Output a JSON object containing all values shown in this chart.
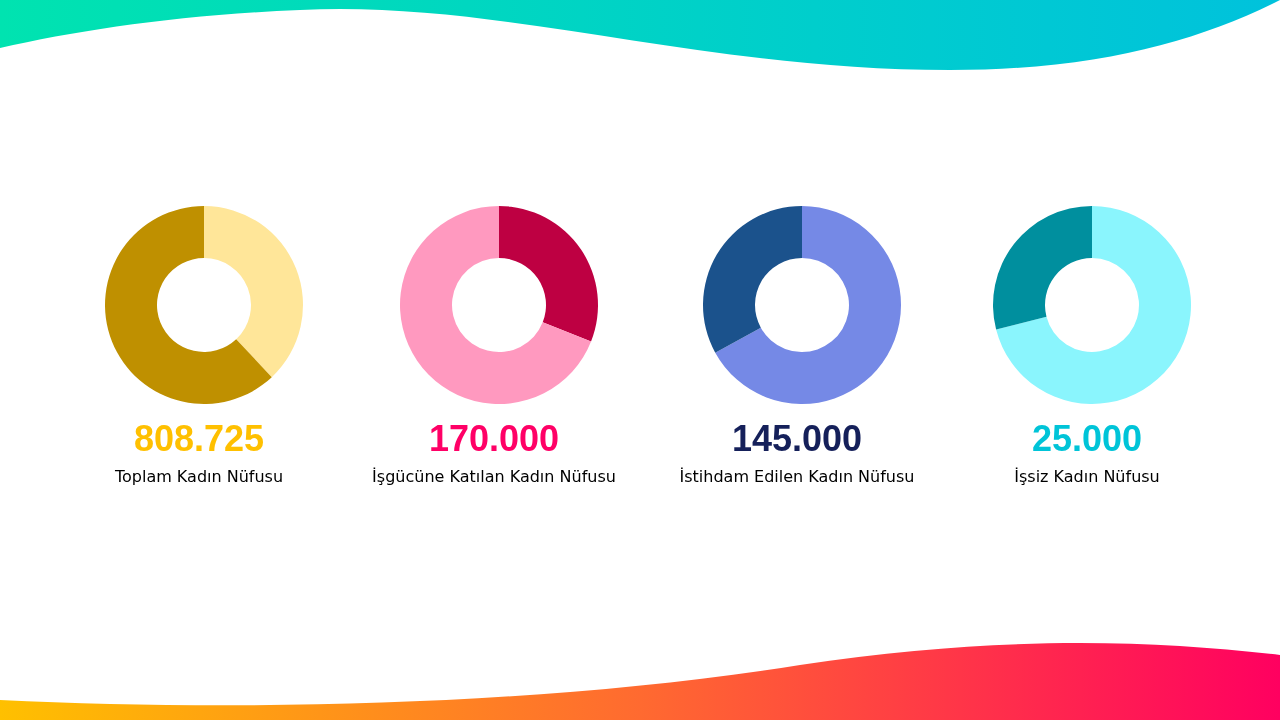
{
  "chart_data": [
    {
      "type": "donut",
      "title": "808.725",
      "subtitle": "Toplam Kadın Nüfusu",
      "categories": [
        null,
        null
      ],
      "values": [
        38,
        62
      ],
      "colors": [
        "#ffe699",
        "#bf9000"
      ]
    },
    {
      "type": "donut",
      "title": "170.000",
      "subtitle": "İşgücüne Katılan Kadın Nüfusu",
      "categories": [
        null,
        null
      ],
      "values": [
        31,
        69
      ],
      "colors": [
        "#be0042",
        "#ff99bf"
      ]
    },
    {
      "type": "donut",
      "title": "145.000",
      "subtitle": "İstihdam Edilen Kadın Nüfusu",
      "categories": [
        null,
        null
      ],
      "values": [
        67,
        33
      ],
      "colors": [
        "#7589e6",
        "#1b528c"
      ]
    },
    {
      "type": "donut",
      "title": "25.000",
      "subtitle": "İşsiz Kadın Nüfusu",
      "categories": [
        null,
        null
      ],
      "values": [
        71,
        29
      ],
      "colors": [
        "#8af5fd",
        "#008f9e"
      ]
    }
  ]
}
